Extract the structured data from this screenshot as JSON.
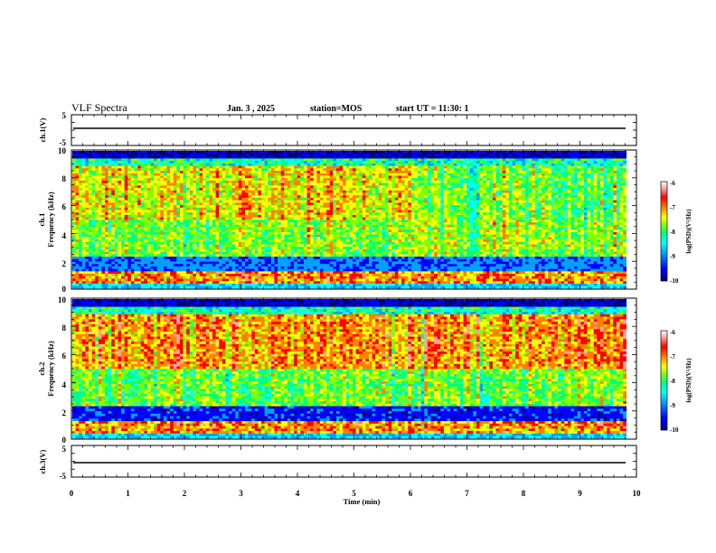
{
  "header": {
    "title": "VLF Spectra",
    "date": "Jan. 3 , 2025",
    "station": "station=MOS",
    "start": "start UT = 11:30: 1"
  },
  "chart_data": {
    "type": "heatmap",
    "xlabel": "Time (min)",
    "xlim": [
      0,
      10
    ],
    "x_ticks": [
      "0",
      "1",
      "2",
      "3",
      "4",
      "5",
      "6",
      "7",
      "8",
      "9",
      "10"
    ],
    "panels": [
      {
        "id": "ch1-voltage",
        "ylabel": "ch.1(V)",
        "ylim": [
          -5,
          5
        ],
        "y_ticks": [
          "5",
          "-5"
        ],
        "trace_level": 0
      },
      {
        "id": "ch1-spectrogram",
        "ylabel_line1": "ch.1",
        "ylabel_line2": "Frequency (kHz)",
        "ylim": [
          0,
          10
        ],
        "y_ticks": [
          "0",
          "2",
          "4",
          "6",
          "8",
          "10"
        ],
        "data_end_min": 9.82
      },
      {
        "id": "ch2-spectrogram",
        "ylabel_line1": "ch.2",
        "ylabel_line2": "Frequency (kHz)",
        "ylim": [
          0,
          10
        ],
        "y_ticks": [
          "0",
          "2",
          "4",
          "6",
          "8",
          "10"
        ],
        "data_end_min": 9.82
      },
      {
        "id": "ch3-voltage",
        "ylabel": "ch.3(V)",
        "ylim": [
          -5,
          5
        ],
        "y_ticks": [
          "5",
          "-5"
        ],
        "trace_level": 0
      }
    ],
    "colorbar": {
      "label": "log(PSD)(V²/Hz)",
      "range": [
        -10,
        -6
      ],
      "ticks": [
        "-6",
        "-7",
        "-8",
        "-9",
        "-10"
      ],
      "colors": [
        "#000080",
        "#0000ff",
        "#00a0ff",
        "#00ffff",
        "#00ff80",
        "#80ff00",
        "#ffff00",
        "#ff8000",
        "#ff0000",
        "#ffa0a0",
        "#ffffff"
      ]
    }
  }
}
